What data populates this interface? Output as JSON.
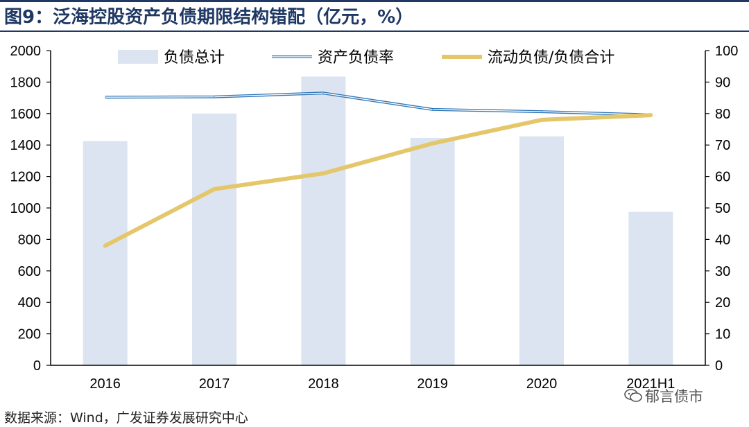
{
  "title": "图9：泛海控股资产负债期限结构错配（亿元，%）",
  "source": "数据来源：Wind，广发证券发展研究中心",
  "watermark": "郁言债市",
  "colors": {
    "bar": "#dbe4f0",
    "ratio_line": "#2e75b6",
    "share_line": "#e5c76b",
    "axis": "#000000"
  },
  "chart_data": {
    "type": "bar",
    "categories": [
      "2016",
      "2017",
      "2018",
      "2019",
      "2020",
      "2021H1"
    ],
    "series": [
      {
        "name": "负债总计",
        "type": "bar",
        "axis": "left",
        "values": [
          1425,
          1600,
          1835,
          1445,
          1455,
          975
        ]
      },
      {
        "name": "资产负债率",
        "type": "line",
        "axis": "right",
        "values": [
          85.2,
          85.3,
          86.5,
          81.3,
          80.6,
          79.6
        ]
      },
      {
        "name": "流动负债/负债合计",
        "type": "line",
        "axis": "right",
        "values": [
          38,
          56,
          61,
          70.5,
          78,
          79.5
        ]
      }
    ],
    "left_axis": {
      "min": 0,
      "max": 2000,
      "step": 200,
      "ticks": [
        "0",
        "200",
        "400",
        "600",
        "800",
        "1000",
        "1200",
        "1400",
        "1600",
        "1800",
        "2000"
      ]
    },
    "right_axis": {
      "min": 0,
      "max": 100,
      "step": 10,
      "ticks": [
        "0",
        "10",
        "20",
        "30",
        "40",
        "50",
        "60",
        "70",
        "80",
        "90",
        "100"
      ]
    },
    "legend_position": "top"
  }
}
